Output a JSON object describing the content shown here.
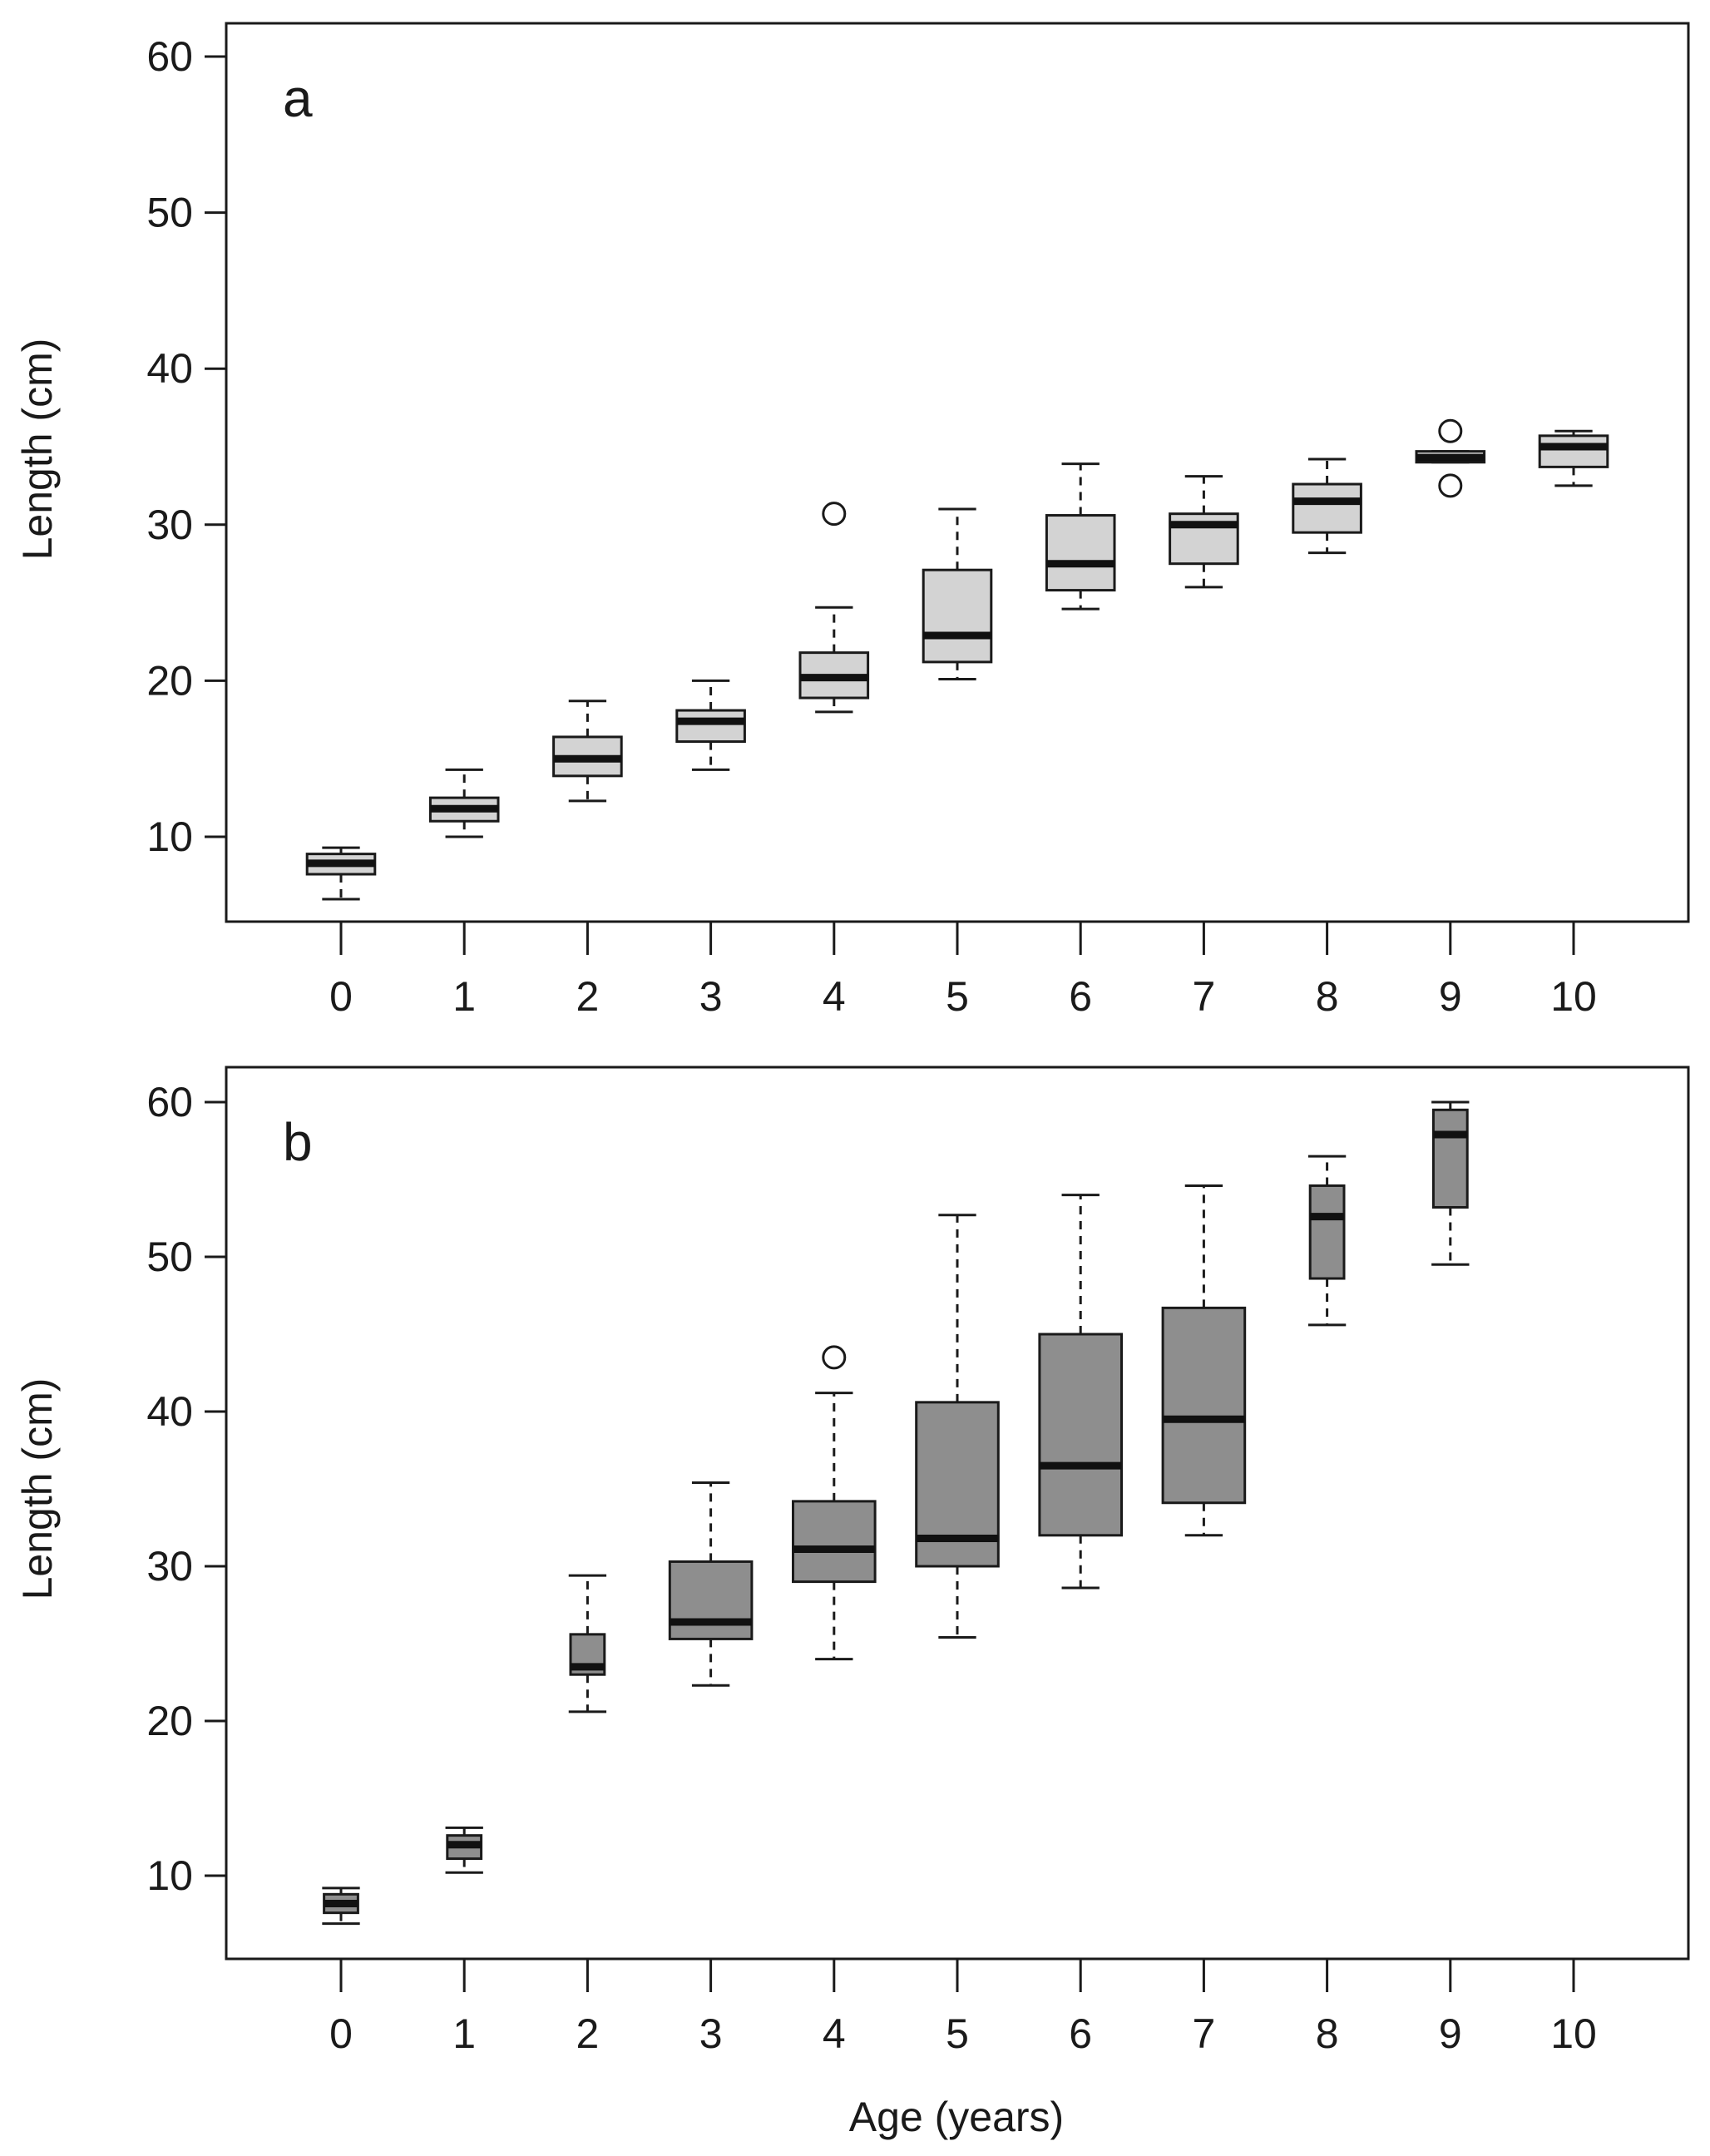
{
  "chart_data": [
    {
      "type": "box",
      "panel_label": "a",
      "xlabel": "",
      "ylabel": "Length (cm)",
      "ylim": [
        4.5,
        62
      ],
      "yticks": [
        10,
        20,
        30,
        40,
        50,
        60
      ],
      "categories": [
        "0",
        "1",
        "2",
        "3",
        "4",
        "5",
        "6",
        "7",
        "8",
        "9",
        "10"
      ],
      "box_color": "#d3d3d3",
      "boxes": [
        {
          "age": "0",
          "whisker_low": 6.0,
          "q1": 7.6,
          "median": 8.3,
          "q3": 8.9,
          "whisker_high": 9.3,
          "outliers": []
        },
        {
          "age": "1",
          "whisker_low": 10.0,
          "q1": 11.0,
          "median": 11.8,
          "q3": 12.5,
          "whisker_high": 14.3,
          "outliers": []
        },
        {
          "age": "2",
          "whisker_low": 12.3,
          "q1": 13.9,
          "median": 15.0,
          "q3": 16.4,
          "whisker_high": 18.7,
          "outliers": []
        },
        {
          "age": "3",
          "whisker_low": 14.3,
          "q1": 16.1,
          "median": 17.4,
          "q3": 18.1,
          "whisker_high": 20.0,
          "outliers": []
        },
        {
          "age": "4",
          "whisker_low": 18.0,
          "q1": 18.9,
          "median": 20.2,
          "q3": 21.8,
          "whisker_high": 24.7,
          "outliers": [
            30.7
          ]
        },
        {
          "age": "5",
          "whisker_low": 20.1,
          "q1": 21.2,
          "median": 22.9,
          "q3": 27.1,
          "whisker_high": 31.0,
          "outliers": []
        },
        {
          "age": "6",
          "whisker_low": 24.6,
          "q1": 25.8,
          "median": 27.5,
          "q3": 30.6,
          "whisker_high": 33.9,
          "outliers": []
        },
        {
          "age": "7",
          "whisker_low": 26.0,
          "q1": 27.5,
          "median": 30.0,
          "q3": 30.7,
          "whisker_high": 33.1,
          "outliers": []
        },
        {
          "age": "8",
          "whisker_low": 28.2,
          "q1": 29.5,
          "median": 31.5,
          "q3": 32.6,
          "whisker_high": 34.2,
          "outliers": []
        },
        {
          "age": "9",
          "whisker_low": 34.0,
          "q1": 34.0,
          "median": 34.3,
          "q3": 34.7,
          "whisker_high": 34.7,
          "outliers": [
            36.0,
            32.5
          ]
        },
        {
          "age": "10",
          "whisker_low": 32.5,
          "q1": 33.7,
          "median": 35.0,
          "q3": 35.7,
          "whisker_high": 36.0,
          "outliers": []
        }
      ]
    },
    {
      "type": "box",
      "panel_label": "b",
      "xlabel": "Age (years)",
      "ylabel": "Length (cm)",
      "ylim": [
        4.5,
        62
      ],
      "yticks": [
        10,
        20,
        30,
        40,
        50,
        60
      ],
      "categories": [
        "0",
        "1",
        "2",
        "3",
        "4",
        "5",
        "6",
        "7",
        "8",
        "9",
        "10"
      ],
      "box_color": "#8e8e8e",
      "boxes": [
        {
          "age": "0",
          "whisker_low": 6.9,
          "q1": 7.6,
          "median": 8.2,
          "q3": 8.8,
          "whisker_high": 9.2,
          "outliers": []
        },
        {
          "age": "1",
          "whisker_low": 10.2,
          "q1": 11.1,
          "median": 12.0,
          "q3": 12.6,
          "whisker_high": 13.1,
          "outliers": []
        },
        {
          "age": "2",
          "whisker_low": 20.6,
          "q1": 23.0,
          "median": 23.5,
          "q3": 25.6,
          "whisker_high": 29.4,
          "outliers": []
        },
        {
          "age": "3",
          "whisker_low": 22.3,
          "q1": 25.3,
          "median": 26.4,
          "q3": 30.3,
          "whisker_high": 35.4,
          "outliers": []
        },
        {
          "age": "4",
          "whisker_low": 24.0,
          "q1": 29.0,
          "median": 31.1,
          "q3": 34.2,
          "whisker_high": 41.2,
          "outliers": [
            43.5
          ]
        },
        {
          "age": "5",
          "whisker_low": 25.4,
          "q1": 30.0,
          "median": 31.8,
          "q3": 40.6,
          "whisker_high": 52.7,
          "outliers": []
        },
        {
          "age": "6",
          "whisker_low": 28.6,
          "q1": 32.0,
          "median": 36.5,
          "q3": 45.0,
          "whisker_high": 54.0,
          "outliers": []
        },
        {
          "age": "7",
          "whisker_low": 32.0,
          "q1": 34.1,
          "median": 39.5,
          "q3": 46.7,
          "whisker_high": 54.6,
          "outliers": []
        },
        {
          "age": "8",
          "whisker_low": 45.6,
          "q1": 48.6,
          "median": 52.6,
          "q3": 54.6,
          "whisker_high": 56.5,
          "outliers": []
        },
        {
          "age": "9",
          "whisker_low": 49.5,
          "q1": 53.2,
          "median": 57.9,
          "q3": 59.5,
          "whisker_high": 60.0,
          "outliers": []
        }
      ]
    }
  ]
}
